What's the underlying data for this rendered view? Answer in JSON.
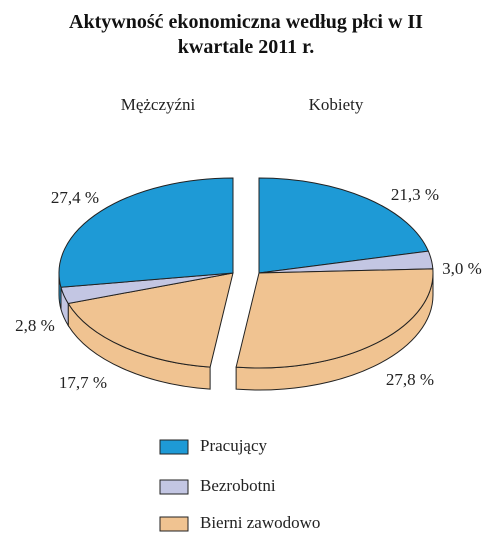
{
  "chart_data": {
    "type": "pie",
    "title": "Aktywność ekonomiczna według płci w II kwartale 2011 r.",
    "categories": [
      "Pracujący",
      "Bezrobotni",
      "Bierni zawodowo"
    ],
    "colors": [
      "#1e9ad6",
      "#c3c6e3",
      "#f0c391"
    ],
    "series": [
      {
        "name": "Mężczyźni",
        "values": [
          27.4,
          2.8,
          17.7
        ],
        "value_labels": [
          "27,4 %",
          "2,8 %",
          "17,7 %"
        ]
      },
      {
        "name": "Kobiety",
        "values": [
          21.3,
          3.0,
          27.8
        ],
        "value_labels": [
          "21,3 %",
          "3,0 %",
          "27,8 %"
        ]
      }
    ]
  }
}
